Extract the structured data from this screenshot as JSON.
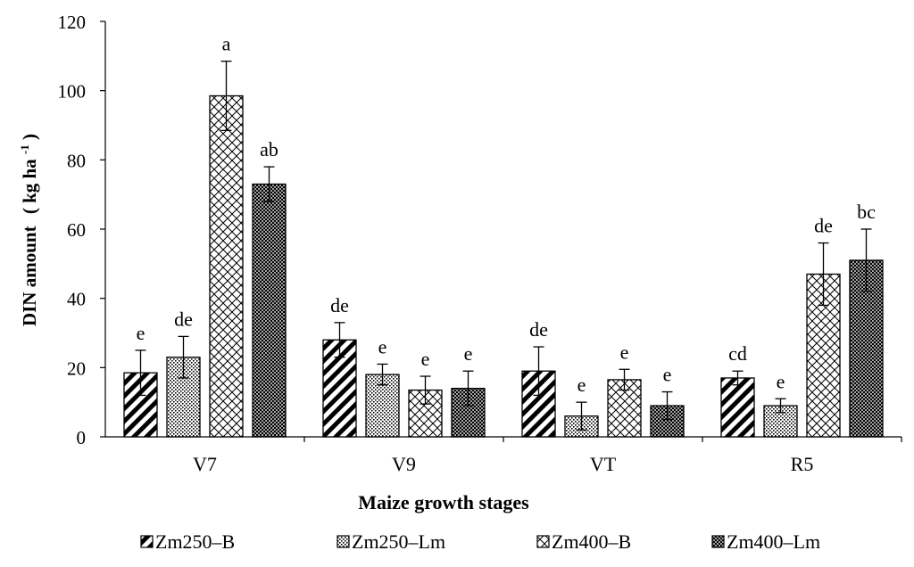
{
  "chart_data": {
    "type": "bar",
    "categories": [
      "V7",
      "V9",
      "VT",
      "R5"
    ],
    "series": [
      {
        "name": "Zm250–B",
        "pattern": "diagonal-stripes",
        "values": [
          18.5,
          28.0,
          19.0,
          17.0
        ],
        "errors": [
          6.5,
          5.0,
          7.0,
          2.0
        ],
        "letters": [
          "e",
          "de",
          "de",
          "cd"
        ]
      },
      {
        "name": "Zm250–Lm",
        "pattern": "fine-dots",
        "values": [
          23.0,
          18.0,
          6.0,
          9.0
        ],
        "errors": [
          6.0,
          3.0,
          4.0,
          2.0
        ],
        "letters": [
          "de",
          "e",
          "e",
          "e"
        ]
      },
      {
        "name": "Zm400–B",
        "pattern": "diamond-crosshatch",
        "values": [
          98.5,
          13.5,
          16.5,
          47.0
        ],
        "errors": [
          10.0,
          4.0,
          3.0,
          9.0
        ],
        "letters": [
          "a",
          "e",
          "e",
          "de"
        ]
      },
      {
        "name": "Zm400–Lm",
        "pattern": "dense-grid",
        "values": [
          73.0,
          14.0,
          9.0,
          51.0
        ],
        "errors": [
          5.0,
          5.0,
          4.0,
          9.0
        ],
        "letters": [
          "ab",
          "e",
          "e",
          "bc"
        ]
      }
    ],
    "xlabel": "Maize growth stages",
    "ylabel_main": "DIN amount",
    "ylabel_unit_text": "( kg  ha",
    "ylabel_unit_sup": "-1",
    "ylabel_unit_close": ")",
    "ylim": [
      0,
      120
    ],
    "yticks": [
      0,
      20,
      40,
      60,
      80,
      100,
      120
    ],
    "grid": false,
    "legend_position": "bottom"
  }
}
